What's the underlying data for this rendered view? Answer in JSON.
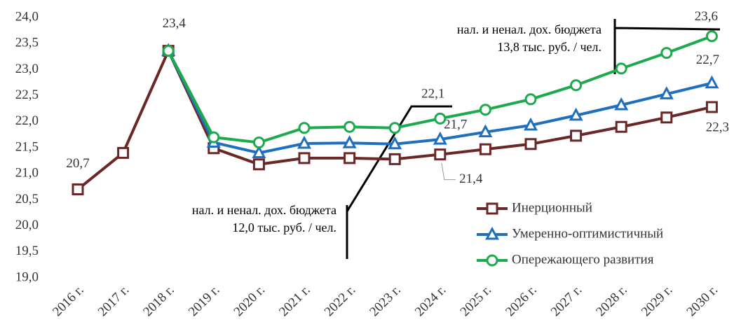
{
  "chart_data": {
    "type": "line",
    "categories": [
      "2016 г.",
      "2017 г.",
      "2018 г.",
      "2019 г.",
      "2020 г.",
      "2021 г.",
      "2022 г.",
      "2023 г.",
      "2024 г.",
      "2025 г.",
      "2026 г.",
      "2027 г.",
      "2028 г.",
      "2029 г.",
      "2030 г."
    ],
    "series": [
      {
        "name": "Инерционный",
        "color": "#6b2626",
        "marker": "square",
        "values": [
          20.7,
          21.4,
          23.36,
          21.49,
          21.18,
          21.3,
          21.3,
          21.28,
          21.37,
          21.47,
          21.57,
          21.73,
          21.9,
          22.08,
          22.28
        ],
        "value_labels": [
          "20,7",
          null,
          "23,4",
          null,
          null,
          null,
          null,
          null,
          "21,4",
          null,
          null,
          null,
          null,
          null,
          "22,3"
        ]
      },
      {
        "name": "Умеренно-оптимистичный",
        "color": "#1f6fbf",
        "marker": "triangle",
        "values": [
          null,
          null,
          23.36,
          21.6,
          21.4,
          21.58,
          21.59,
          21.57,
          21.66,
          21.8,
          21.93,
          22.12,
          22.32,
          22.53,
          22.74
        ],
        "value_labels": [
          null,
          null,
          null,
          null,
          null,
          null,
          null,
          null,
          "21,7",
          null,
          null,
          null,
          null,
          null,
          "22,7"
        ]
      },
      {
        "name": "Опережающего развития",
        "color": "#1caa4c",
        "marker": "circle",
        "values": [
          null,
          null,
          23.36,
          21.7,
          21.6,
          21.88,
          21.9,
          21.88,
          22.06,
          22.23,
          22.43,
          22.7,
          23.02,
          23.32,
          23.64
        ],
        "value_labels": [
          null,
          null,
          null,
          null,
          null,
          null,
          null,
          null,
          "22,1",
          null,
          null,
          null,
          null,
          null,
          "23,6"
        ]
      }
    ],
    "ylim": [
      19,
      24
    ],
    "yticks": [
      {
        "value": 19,
        "label": "19,0"
      },
      {
        "value": 19.5,
        "label": "19,5"
      },
      {
        "value": 20,
        "label": "20,0"
      },
      {
        "value": 20.5,
        "label": "20,5"
      },
      {
        "value": 21,
        "label": "21,0"
      },
      {
        "value": 21.5,
        "label": "21,5"
      },
      {
        "value": 22,
        "label": "22,0"
      },
      {
        "value": 22.5,
        "label": "22,5"
      },
      {
        "value": 23,
        "label": "23,0"
      },
      {
        "value": 23.5,
        "label": "23,5"
      },
      {
        "value": 24,
        "label": "24,0"
      }
    ],
    "grid": false,
    "legend": "lower right",
    "annotations": [
      {
        "lines": [
          "нал. и ненал. дох. бюджета",
          "12,0 тыс. руб. / чел."
        ]
      },
      {
        "lines": [
          "нал. и ненал. дох. бюджета",
          "13,8 тыс. руб. / чел."
        ]
      }
    ]
  }
}
